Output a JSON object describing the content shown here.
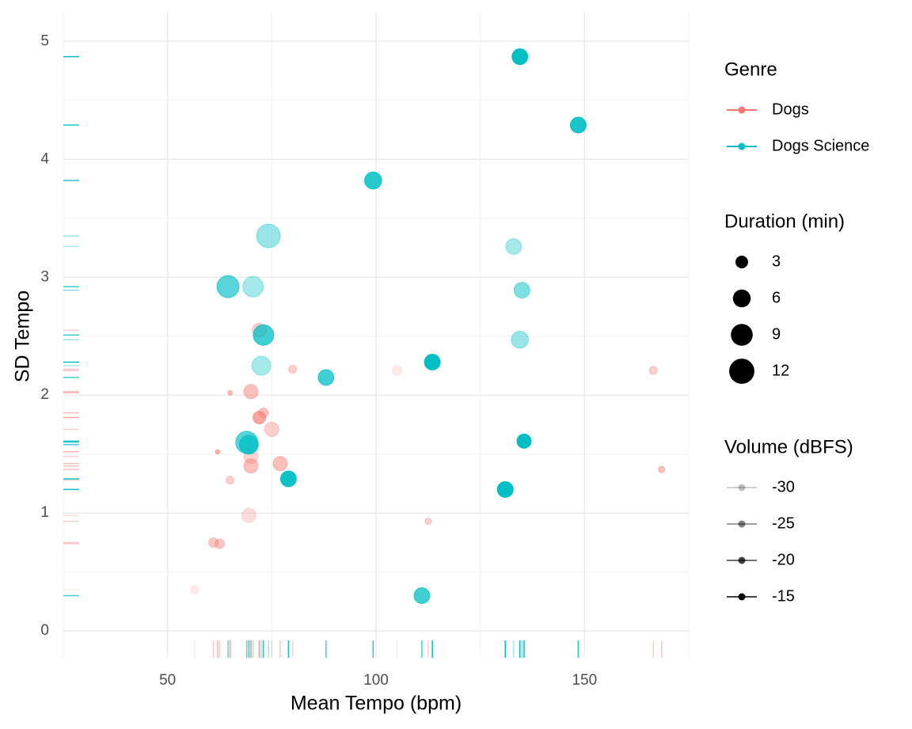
{
  "chart_data": {
    "type": "scatter",
    "x_label": "Mean Tempo (bpm)",
    "y_label": "SD Tempo",
    "xlim": [
      25,
      175
    ],
    "ylim": [
      -0.22,
      5.25
    ],
    "xticks": [
      50,
      100,
      150
    ],
    "yticks": [
      0,
      1,
      2,
      3,
      4,
      5
    ],
    "grid": true,
    "rug": true,
    "color_legend_title": "Genre",
    "series": [
      {
        "name": "Dogs",
        "color": "#F8766D",
        "x": [
          72,
          80,
          105,
          166.5,
          70,
          65,
          72,
          73,
          75,
          62,
          70,
          77,
          70,
          168.5,
          65,
          69.5,
          112.5,
          61,
          62.5,
          56.5
        ],
        "values": [
          2.55,
          2.22,
          2.21,
          2.21,
          2.03,
          2.02,
          1.81,
          1.85,
          1.71,
          1.52,
          1.48,
          1.42,
          1.4,
          1.37,
          1.28,
          0.98,
          0.93,
          0.75,
          0.74,
          0.35
        ],
        "duration": [
          3.8,
          1.2,
          1.7,
          1.2,
          3.8,
          0.4,
          3,
          1.7,
          3.8,
          0.4,
          3.8,
          3.8,
          3.8,
          0.8,
          1.2,
          3.8,
          0.8,
          1.7,
          1.7,
          1.2
        ],
        "volume": [
          -28,
          -28,
          -32,
          -28,
          -26,
          -25,
          -22,
          -26,
          -28,
          -24,
          -29,
          -26,
          -26,
          -26,
          -28,
          -30,
          -28,
          -27,
          -27,
          -32
        ]
      },
      {
        "name": "Dogs Science",
        "color": "#00BFC4",
        "x": [
          134.5,
          148.5,
          99.3,
          74.2,
          133,
          64.5,
          70.5,
          135,
          73,
          134.5,
          113.5,
          72.5,
          88,
          69,
          69.5,
          135.5,
          79,
          131,
          111
        ],
        "values": [
          4.87,
          4.29,
          3.82,
          3.35,
          3.26,
          2.92,
          2.92,
          2.89,
          2.51,
          2.47,
          2.28,
          2.25,
          2.15,
          1.6,
          1.58,
          1.61,
          1.29,
          1.2,
          0.3
        ],
        "duration": [
          4.7,
          4.7,
          5.5,
          10.6,
          4.7,
          9.3,
          8,
          4.7,
          8,
          5.5,
          4.7,
          6.8,
          4.7,
          9.3,
          6.8,
          3.8,
          4.7,
          4.7,
          4.7
        ],
        "volume": [
          -15,
          -17,
          -18,
          -27,
          -28,
          -22,
          -28,
          -25,
          -20,
          -27,
          -15,
          -28,
          -20,
          -22,
          -20,
          -15,
          -16,
          -15,
          -20
        ]
      }
    ],
    "size_legend": {
      "title": "Duration (min)",
      "breaks": [
        3,
        6,
        9,
        12
      ]
    },
    "alpha_legend": {
      "title": "Volume (dBFS)",
      "breaks": [
        -30,
        -25,
        -20,
        -15
      ]
    }
  }
}
